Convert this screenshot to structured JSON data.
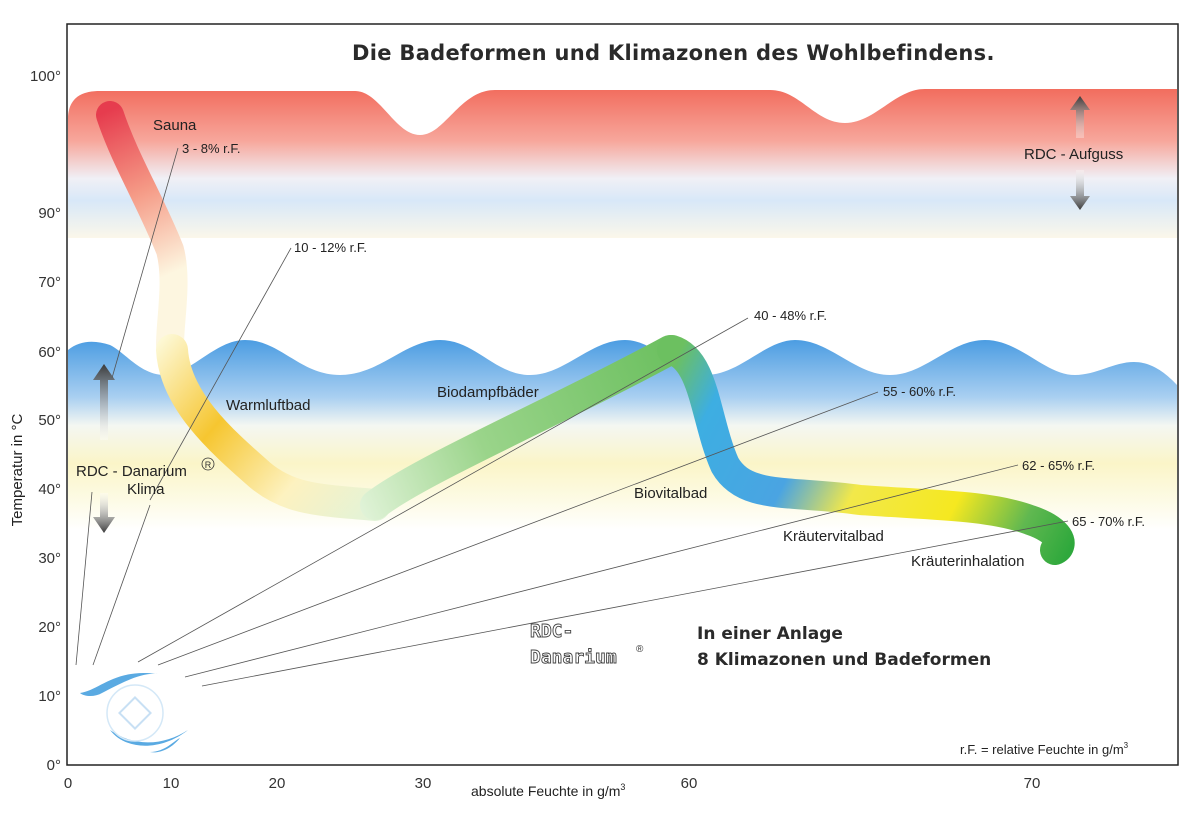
{
  "chart_data": {
    "type": "line",
    "title": "Die Badeformen und Klimazonen des Wohlbefindens.",
    "xlabel": "absolute Feuchte in g/m",
    "xlabel_sup": "3",
    "ylabel": "Temperatur in °C",
    "x_ticks": [
      "0",
      "10",
      "20",
      "30",
      "60",
      "70"
    ],
    "y_ticks": [
      "100°",
      "90°",
      "70°",
      "60°",
      "50°",
      "40°",
      "30°",
      "20°",
      "10°",
      "0°"
    ],
    "grid": false,
    "bands": [
      {
        "name": "Aufguss-Zone",
        "color": "#f06a5c"
      },
      {
        "name": "Danarium-Klima-Zone",
        "color": "#4a9be0"
      }
    ],
    "bath_forms": [
      {
        "name": "Sauna",
        "color": "#e8404f"
      },
      {
        "name": "Warmluftbad",
        "color": "#f5c020"
      },
      {
        "name": "Biodampfbäder",
        "color": "#6cc060"
      },
      {
        "name": "Biovitalbad",
        "color": "#3aa8e0"
      },
      {
        "name": "Kräutervitalbad",
        "color": "#f0e020"
      },
      {
        "name": "Kräuterinhalation",
        "color": "#2ea83c"
      }
    ],
    "relative_humidity_lines": [
      {
        "label": "3 - 8% r.F."
      },
      {
        "label": "10 - 12% r.F."
      },
      {
        "label": "40 - 48% r.F."
      },
      {
        "label": "55 - 60% r.F."
      },
      {
        "label": "62 - 65% r.F."
      },
      {
        "label": "65 - 70% r.F."
      }
    ],
    "annotations": {
      "aufguss": "RDC - Aufguss",
      "danarium_line1": "RDC - Danarium",
      "danarium_reg": "R",
      "danarium_line2": "Klima",
      "brand_line1": "RDC-",
      "brand_line2": "Danarium",
      "brand_reg": "®",
      "slogan_line1": "In einer Anlage",
      "slogan_line2": "8 Klimazonen und Badeformen",
      "legend_note": "r.F. = relative Feuchte in g/m",
      "legend_note_sup": "3"
    }
  }
}
